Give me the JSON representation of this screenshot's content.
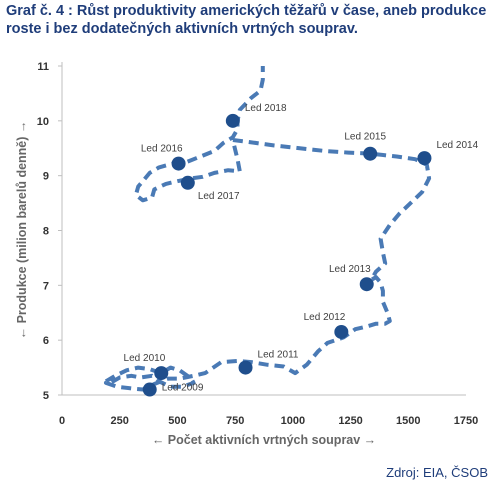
{
  "title": "Graf č. 4 : Růst produktivity amerických těžařů v čase, aneb produkce roste i bez dodatečných aktivních vrtných souprav.",
  "source": "Zdroj: EIA, ČSOB",
  "colors": {
    "line": "#4a7ab5",
    "point": "#1f4e8c",
    "title": "#1f3d7a"
  },
  "chart_data": {
    "type": "scatter",
    "xlabel": "← Počet aktivních vrtných souprav →",
    "ylabel": "← Produkce (milion barelů denně) →",
    "xlim": [
      0,
      1750
    ],
    "ylim": [
      5,
      11
    ],
    "xticks": [
      0,
      250,
      500,
      750,
      1000,
      1250,
      1500,
      1750
    ],
    "yticks": [
      5,
      6,
      7,
      8,
      9,
      10,
      11
    ],
    "grid": false,
    "line_style": "dashed",
    "path": [
      [
        190,
        5.25
      ],
      [
        230,
        5.35
      ],
      [
        280,
        5.45
      ],
      [
        330,
        5.5
      ],
      [
        380,
        5.47
      ],
      [
        430,
        5.4
      ],
      [
        470,
        5.5
      ],
      [
        510,
        5.45
      ],
      [
        560,
        5.3
      ],
      [
        570,
        5.22
      ],
      [
        520,
        5.15
      ],
      [
        470,
        5.15
      ],
      [
        420,
        5.25
      ],
      [
        390,
        5.35
      ],
      [
        340,
        5.32
      ],
      [
        300,
        5.35
      ],
      [
        250,
        5.32
      ],
      [
        210,
        5.22
      ],
      [
        190,
        5.22
      ],
      [
        240,
        5.15
      ],
      [
        300,
        5.12
      ],
      [
        350,
        5.1
      ],
      [
        400,
        5.2
      ],
      [
        460,
        5.3
      ],
      [
        510,
        5.3
      ],
      [
        570,
        5.35
      ],
      [
        620,
        5.4
      ],
      [
        690,
        5.6
      ],
      [
        760,
        5.62
      ],
      [
        820,
        5.6
      ],
      [
        890,
        5.55
      ],
      [
        960,
        5.52
      ],
      [
        1010,
        5.4
      ],
      [
        1060,
        5.55
      ],
      [
        1110,
        5.8
      ],
      [
        1150,
        5.95
      ],
      [
        1220,
        6.05
      ],
      [
        1270,
        6.2
      ],
      [
        1320,
        6.25
      ],
      [
        1360,
        6.3
      ],
      [
        1400,
        6.3
      ],
      [
        1420,
        6.35
      ],
      [
        1410,
        6.5
      ],
      [
        1390,
        6.7
      ],
      [
        1390,
        6.9
      ],
      [
        1380,
        7.05
      ],
      [
        1360,
        7.15
      ],
      [
        1340,
        7.1
      ],
      [
        1360,
        7.25
      ],
      [
        1400,
        7.4
      ],
      [
        1390,
        7.6
      ],
      [
        1380,
        7.85
      ],
      [
        1420,
        8.1
      ],
      [
        1460,
        8.3
      ],
      [
        1510,
        8.5
      ],
      [
        1560,
        8.7
      ],
      [
        1590,
        8.95
      ],
      [
        1580,
        9.2
      ],
      [
        1530,
        9.3
      ],
      [
        1450,
        9.35
      ],
      [
        1340,
        9.4
      ],
      [
        1240,
        9.42
      ],
      [
        1140,
        9.45
      ],
      [
        1030,
        9.5
      ],
      [
        920,
        9.55
      ],
      [
        800,
        9.62
      ],
      [
        740,
        9.65
      ],
      [
        760,
        9.3
      ],
      [
        770,
        9.08
      ],
      [
        720,
        9.1
      ],
      [
        660,
        9.05
      ],
      [
        610,
        8.98
      ],
      [
        560,
        8.95
      ],
      [
        500,
        8.9
      ],
      [
        450,
        8.85
      ],
      [
        400,
        8.75
      ],
      [
        390,
        8.6
      ],
      [
        350,
        8.55
      ],
      [
        320,
        8.65
      ],
      [
        330,
        8.8
      ],
      [
        350,
        8.9
      ],
      [
        380,
        9.05
      ],
      [
        420,
        9.15
      ],
      [
        480,
        9.22
      ],
      [
        540,
        9.25
      ],
      [
        600,
        9.35
      ],
      [
        660,
        9.45
      ],
      [
        700,
        9.6
      ],
      [
        740,
        9.7
      ],
      [
        760,
        9.85
      ],
      [
        760,
        10.0
      ],
      [
        770,
        10.2
      ],
      [
        820,
        10.42
      ],
      [
        860,
        10.55
      ],
      [
        870,
        10.75
      ],
      [
        870,
        11.0
      ]
    ],
    "points": [
      {
        "label": "Led 2009",
        "x": 380,
        "y": 5.1,
        "label_pos": "right"
      },
      {
        "label": "Led 2010",
        "x": 430,
        "y": 5.4,
        "label_pos": "above-left"
      },
      {
        "label": "Led 2011",
        "x": 795,
        "y": 5.5,
        "label_pos": "above-right"
      },
      {
        "label": "Led 2012",
        "x": 1210,
        "y": 6.15,
        "label_pos": "above-left"
      },
      {
        "label": "Led 2013",
        "x": 1320,
        "y": 7.02,
        "label_pos": "above-left"
      },
      {
        "label": "Led 2014",
        "x": 1570,
        "y": 9.32,
        "label_pos": "above-right"
      },
      {
        "label": "Led 2015",
        "x": 1335,
        "y": 9.4,
        "label_pos": "above"
      },
      {
        "label": "Led 2016",
        "x": 505,
        "y": 9.22,
        "label_pos": "above-left"
      },
      {
        "label": "Led 2017",
        "x": 545,
        "y": 8.87,
        "label_pos": "below-right"
      },
      {
        "label": "Led 2018",
        "x": 740,
        "y": 10.0,
        "label_pos": "above-right"
      }
    ]
  }
}
